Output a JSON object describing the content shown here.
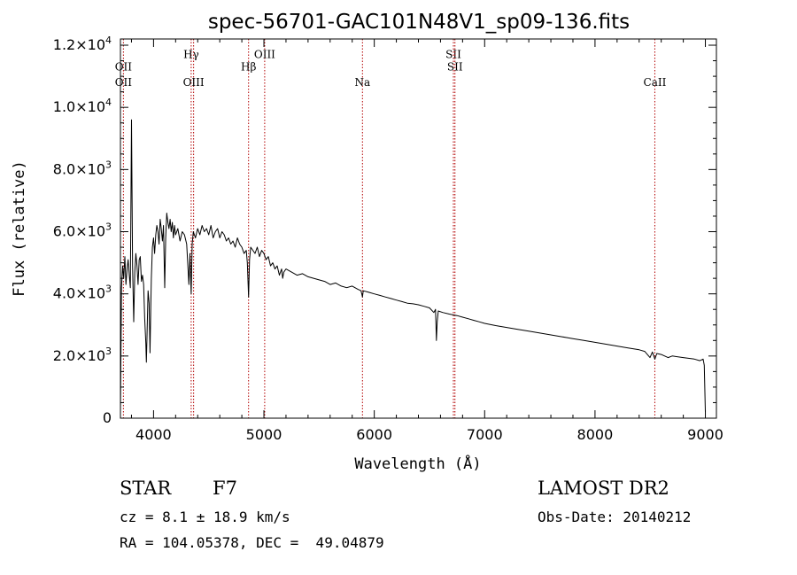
{
  "chart_data": {
    "type": "line",
    "title": "spec-56701-GAC101N48V1_sp09-136.fits",
    "xlabel": "Wavelength (Å)",
    "ylabel": "Flux (relative)",
    "xlim": [
      3700,
      9100
    ],
    "ylim": [
      0,
      12200
    ],
    "x_ticks": [
      {
        "value": 4000,
        "label": "4000"
      },
      {
        "value": 5000,
        "label": "5000"
      },
      {
        "value": 6000,
        "label": "6000"
      },
      {
        "value": 7000,
        "label": "7000"
      },
      {
        "value": 8000,
        "label": "8000"
      },
      {
        "value": 9000,
        "label": "9000"
      }
    ],
    "x_minor_step": 200,
    "y_ticks": [
      {
        "value": 0,
        "label": "0",
        "exp": ""
      },
      {
        "value": 2000,
        "label": "2.0×10",
        "exp": "3"
      },
      {
        "value": 4000,
        "label": "4.0×10",
        "exp": "3"
      },
      {
        "value": 6000,
        "label": "6.0×10",
        "exp": "3"
      },
      {
        "value": 8000,
        "label": "8.0×10",
        "exp": "3"
      },
      {
        "value": 10000,
        "label": "1.0×10",
        "exp": "4"
      },
      {
        "value": 12000,
        "label": "1.2×10",
        "exp": "4"
      }
    ],
    "y_minor_step": 500,
    "series_color": "#000000",
    "line_color": "#b30000",
    "lines": [
      {
        "x": 3727,
        "labels": [
          {
            "text": "OII",
            "y": 11300
          },
          {
            "text": "OII",
            "y": 10800
          }
        ]
      },
      {
        "x": 4341,
        "labels": [
          {
            "text": "Hγ",
            "y": 11700
          }
        ]
      },
      {
        "x": 4363,
        "labels": [
          {
            "text": "OIII",
            "y": 10800
          }
        ]
      },
      {
        "x": 4861,
        "labels": [
          {
            "text": "Hβ",
            "y": 11300
          }
        ]
      },
      {
        "x": 5007,
        "labels": [
          {
            "text": "OIII",
            "y": 11700
          }
        ]
      },
      {
        "x": 5893,
        "labels": [
          {
            "text": "Na",
            "y": 10800
          }
        ]
      },
      {
        "x": 6717,
        "labels": [
          {
            "text": "SII",
            "y": 11700
          }
        ]
      },
      {
        "x": 6731,
        "labels": [
          {
            "text": "SII",
            "y": 11300
          }
        ]
      },
      {
        "x": 8542,
        "labels": [
          {
            "text": "CaII",
            "y": 10800
          }
        ]
      }
    ],
    "spectrum": {
      "x": [
        3700,
        3710,
        3720,
        3730,
        3740,
        3750,
        3760,
        3770,
        3780,
        3790,
        3800,
        3810,
        3820,
        3830,
        3840,
        3850,
        3860,
        3870,
        3880,
        3890,
        3900,
        3910,
        3920,
        3930,
        3935,
        3940,
        3950,
        3960,
        3968,
        3975,
        3980,
        3990,
        4000,
        4010,
        4020,
        4030,
        4040,
        4050,
        4060,
        4070,
        4080,
        4090,
        4101,
        4110,
        4120,
        4130,
        4140,
        4150,
        4160,
        4170,
        4180,
        4190,
        4200,
        4220,
        4240,
        4260,
        4280,
        4300,
        4320,
        4330,
        4341,
        4350,
        4360,
        4380,
        4400,
        4420,
        4440,
        4460,
        4480,
        4500,
        4520,
        4540,
        4560,
        4580,
        4600,
        4620,
        4640,
        4660,
        4680,
        4700,
        4720,
        4740,
        4760,
        4780,
        4800,
        4820,
        4840,
        4850,
        4861,
        4870,
        4880,
        4900,
        4920,
        4940,
        4960,
        4980,
        5000,
        5020,
        5040,
        5060,
        5080,
        5100,
        5120,
        5140,
        5160,
        5170,
        5180,
        5200,
        5250,
        5300,
        5350,
        5400,
        5450,
        5500,
        5550,
        5600,
        5650,
        5700,
        5750,
        5800,
        5850,
        5880,
        5893,
        5900,
        5950,
        6000,
        6050,
        6100,
        6150,
        6200,
        6250,
        6300,
        6350,
        6400,
        6450,
        6500,
        6540,
        6555,
        6563,
        6570,
        6580,
        6620,
        6680,
        6750,
        6800,
        6850,
        6900,
        6950,
        7000,
        7100,
        7200,
        7300,
        7400,
        7500,
        7600,
        7700,
        7800,
        7900,
        8000,
        8100,
        8200,
        8300,
        8400,
        8450,
        8498,
        8520,
        8542,
        8560,
        8600,
        8662,
        8700,
        8800,
        8900,
        8950,
        8980,
        8990,
        9000
      ],
      "y": [
        200,
        4200,
        4900,
        4500,
        5200,
        4300,
        4800,
        5100,
        4600,
        4200,
        9600,
        4900,
        3100,
        4700,
        5300,
        4900,
        4300,
        5100,
        5200,
        4400,
        4600,
        4300,
        3200,
        2400,
        1800,
        2500,
        4100,
        3700,
        2100,
        3600,
        4500,
        5500,
        5800,
        5300,
        5900,
        6200,
        6000,
        5600,
        6400,
        6100,
        5700,
        6200,
        4200,
        5800,
        6600,
        6300,
        6100,
        6400,
        6000,
        6300,
        5800,
        6200,
        5900,
        6100,
        5700,
        6000,
        5900,
        5600,
        4300,
        5300,
        4000,
        5600,
        6000,
        5800,
        6100,
        5900,
        6200,
        6000,
        6100,
        5900,
        6200,
        5800,
        6000,
        6100,
        5800,
        6000,
        5900,
        5700,
        5800,
        5600,
        5700,
        5500,
        5800,
        5600,
        5500,
        5300,
        5400,
        5000,
        3900,
        5100,
        5500,
        5400,
        5300,
        5500,
        5200,
        5400,
        5300,
        5100,
        5200,
        4900,
        5000,
        4800,
        4900,
        4600,
        4800,
        4500,
        4700,
        4800,
        4700,
        4600,
        4650,
        4550,
        4500,
        4450,
        4400,
        4300,
        4350,
        4250,
        4200,
        4250,
        4150,
        4100,
        3900,
        4100,
        4050,
        4000,
        3950,
        3900,
        3850,
        3800,
        3750,
        3700,
        3680,
        3650,
        3600,
        3550,
        3400,
        3500,
        2500,
        3100,
        3450,
        3400,
        3350,
        3300,
        3250,
        3200,
        3150,
        3100,
        3050,
        2980,
        2920,
        2860,
        2800,
        2740,
        2680,
        2620,
        2560,
        2500,
        2440,
        2380,
        2320,
        2260,
        2200,
        2150,
        1950,
        2130,
        1900,
        2080,
        2050,
        1950,
        2000,
        1950,
        1900,
        1850,
        1900,
        1700,
        200
      ]
    }
  },
  "info": {
    "object_class": "STAR",
    "subclass": "F7",
    "survey": "LAMOST DR2",
    "redshift": "cz = 8.1 ± 18.9 km/s",
    "obs_date": "Obs-Date: 20140212",
    "coords": "RA = 104.05378, DEC =  49.04879"
  }
}
